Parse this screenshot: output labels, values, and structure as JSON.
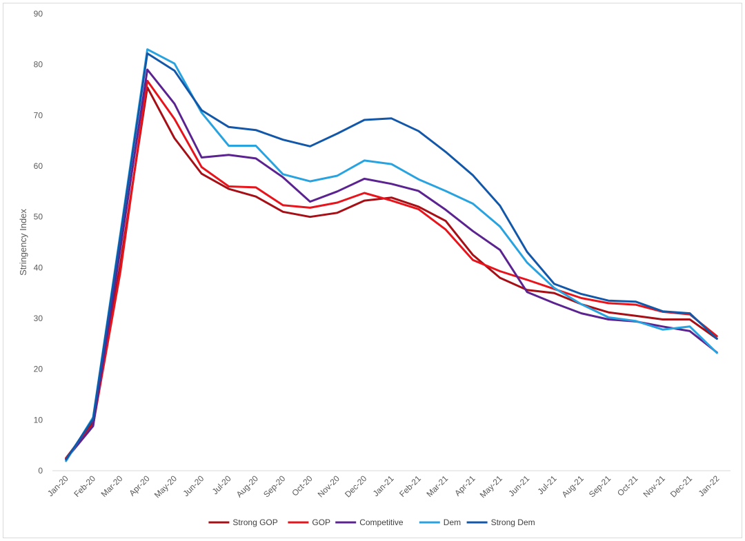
{
  "chart_data": {
    "type": "line",
    "title": "",
    "xlabel": "",
    "ylabel": "Stringency Index",
    "ylim": [
      0,
      90
    ],
    "yticks": [
      0,
      10,
      20,
      30,
      40,
      50,
      60,
      70,
      80,
      90
    ],
    "grid": false,
    "legend_position": "bottom",
    "categories": [
      "Jan-20",
      "Feb-20",
      "Mar-20",
      "Apr-20",
      "May-20",
      "Jun-20",
      "Jul-20",
      "Aug-20",
      "Sep-20",
      "Oct-20",
      "Nov-20",
      "Dec-20",
      "Jan-21",
      "Feb-21",
      "Mar-21",
      "Apr-21",
      "May-21",
      "Jun-21",
      "Jul-21",
      "Aug-21",
      "Sep-21",
      "Oct-21",
      "Nov-21",
      "Dec-21",
      "Jan-22"
    ],
    "series": [
      {
        "name": "Strong GOP",
        "color": "#a50f15",
        "values": [
          2.5,
          9.5,
          40.5,
          75.5,
          65.5,
          58.5,
          55.5,
          54.0,
          51.0,
          50.0,
          50.8,
          53.2,
          53.8,
          52.0,
          49.2,
          42.5,
          38.0,
          35.6,
          35.0,
          32.8,
          31.2,
          30.5,
          29.8,
          29.8,
          26.0
        ]
      },
      {
        "name": "GOP",
        "color": "#e8141c",
        "values": [
          2.4,
          9.0,
          39.0,
          76.8,
          69.3,
          59.8,
          56.0,
          55.8,
          52.3,
          51.8,
          52.8,
          54.7,
          53.2,
          51.5,
          47.5,
          41.5,
          39.3,
          37.6,
          35.8,
          34.0,
          33.0,
          32.7,
          31.3,
          30.8,
          26.5
        ]
      },
      {
        "name": "Competitive",
        "color": "#5b2390",
        "values": [
          2.3,
          8.8,
          43.5,
          79.0,
          72.3,
          61.7,
          62.2,
          61.5,
          57.8,
          53.0,
          55.0,
          57.5,
          56.5,
          55.1,
          51.4,
          47.2,
          43.5,
          35.2,
          33.0,
          31.0,
          29.8,
          29.4,
          28.4,
          27.5,
          23.3
        ]
      },
      {
        "name": "Dem",
        "color": "#29a3e0",
        "values": [
          1.9,
          10.5,
          46.5,
          83.0,
          80.2,
          70.5,
          64.0,
          64.0,
          58.4,
          57.0,
          58.1,
          61.1,
          60.4,
          57.4,
          55.1,
          52.6,
          48.1,
          41.0,
          36.0,
          32.8,
          30.2,
          29.5,
          27.8,
          28.4,
          23.2
        ]
      },
      {
        "name": "Strong Dem",
        "color": "#1257a8",
        "values": [
          2.2,
          10.2,
          46.0,
          82.2,
          78.8,
          71.0,
          67.7,
          67.1,
          65.2,
          63.9,
          66.4,
          69.1,
          69.4,
          66.9,
          62.8,
          58.2,
          52.2,
          43.1,
          36.8,
          34.8,
          33.5,
          33.3,
          31.4,
          31.0,
          26.0
        ]
      }
    ]
  }
}
